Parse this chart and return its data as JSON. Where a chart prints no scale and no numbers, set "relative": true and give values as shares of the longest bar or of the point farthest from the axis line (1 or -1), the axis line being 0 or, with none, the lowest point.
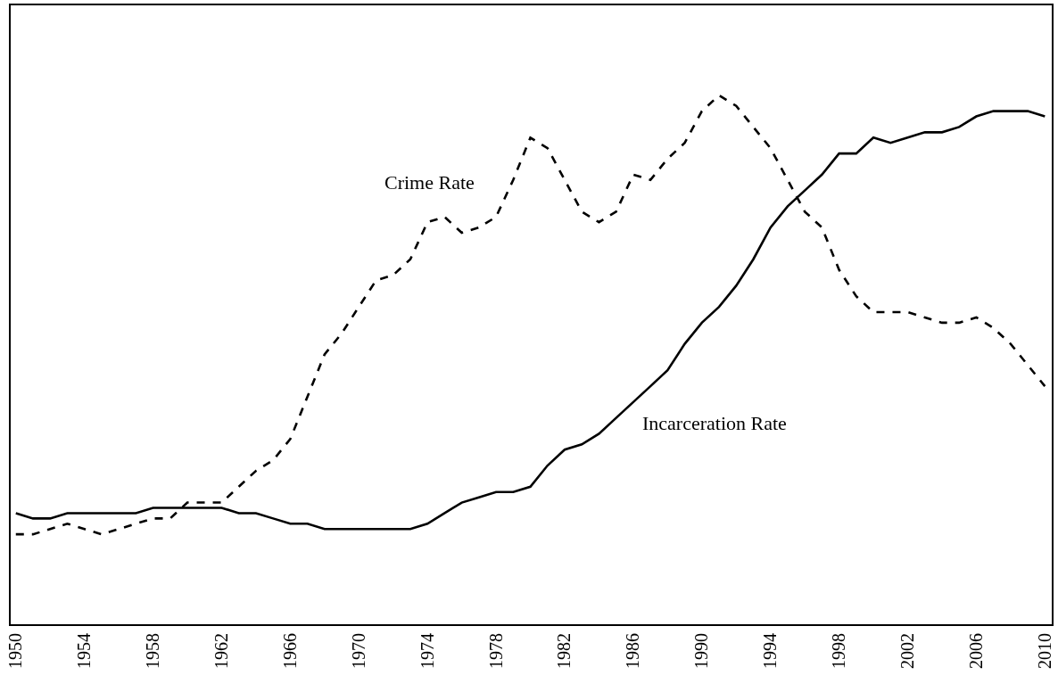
{
  "chart_data": {
    "type": "line",
    "relative": true,
    "x": [
      1950,
      1951,
      1952,
      1953,
      1954,
      1955,
      1956,
      1957,
      1958,
      1959,
      1960,
      1961,
      1962,
      1963,
      1964,
      1965,
      1966,
      1967,
      1968,
      1969,
      1970,
      1971,
      1972,
      1973,
      1974,
      1975,
      1976,
      1977,
      1978,
      1979,
      1980,
      1981,
      1982,
      1983,
      1984,
      1985,
      1986,
      1987,
      1988,
      1989,
      1990,
      1991,
      1992,
      1993,
      1994,
      1995,
      1996,
      1997,
      1998,
      1999,
      2000,
      2001,
      2002,
      2003,
      2004,
      2005,
      2006,
      2007,
      2008,
      2009,
      2010
    ],
    "series": [
      {
        "name": "Crime Rate",
        "color": "#000000",
        "line_style": "dashed",
        "values": [
          0.17,
          0.17,
          0.18,
          0.19,
          0.18,
          0.17,
          0.18,
          0.19,
          0.2,
          0.2,
          0.23,
          0.23,
          0.23,
          0.26,
          0.29,
          0.31,
          0.35,
          0.43,
          0.51,
          0.55,
          0.6,
          0.65,
          0.66,
          0.69,
          0.76,
          0.77,
          0.74,
          0.75,
          0.77,
          0.84,
          0.92,
          0.9,
          0.84,
          0.78,
          0.76,
          0.78,
          0.85,
          0.84,
          0.88,
          0.91,
          0.97,
          1.0,
          0.98,
          0.94,
          0.9,
          0.84,
          0.78,
          0.75,
          0.67,
          0.62,
          0.59,
          0.59,
          0.59,
          0.58,
          0.57,
          0.57,
          0.58,
          0.56,
          0.53,
          0.49,
          0.45
        ]
      },
      {
        "name": "Incarceration Rate",
        "color": "#000000",
        "line_style": "solid",
        "values": [
          0.21,
          0.2,
          0.2,
          0.21,
          0.21,
          0.21,
          0.21,
          0.21,
          0.22,
          0.22,
          0.22,
          0.22,
          0.22,
          0.21,
          0.21,
          0.2,
          0.19,
          0.19,
          0.18,
          0.18,
          0.18,
          0.18,
          0.18,
          0.18,
          0.19,
          0.21,
          0.23,
          0.24,
          0.25,
          0.25,
          0.26,
          0.3,
          0.33,
          0.34,
          0.36,
          0.39,
          0.42,
          0.45,
          0.48,
          0.53,
          0.57,
          0.6,
          0.64,
          0.69,
          0.75,
          0.79,
          0.82,
          0.85,
          0.89,
          0.89,
          0.92,
          0.91,
          0.92,
          0.93,
          0.93,
          0.94,
          0.96,
          0.97,
          0.97,
          0.97,
          0.96
        ]
      }
    ],
    "xlim": [
      1949.7,
      2010.4
    ],
    "xticks": [
      1950,
      1954,
      1958,
      1962,
      1966,
      1970,
      1974,
      1978,
      1982,
      1986,
      1990,
      1994,
      1998,
      2002,
      2006,
      2010
    ],
    "legend": false,
    "marker": "none"
  }
}
